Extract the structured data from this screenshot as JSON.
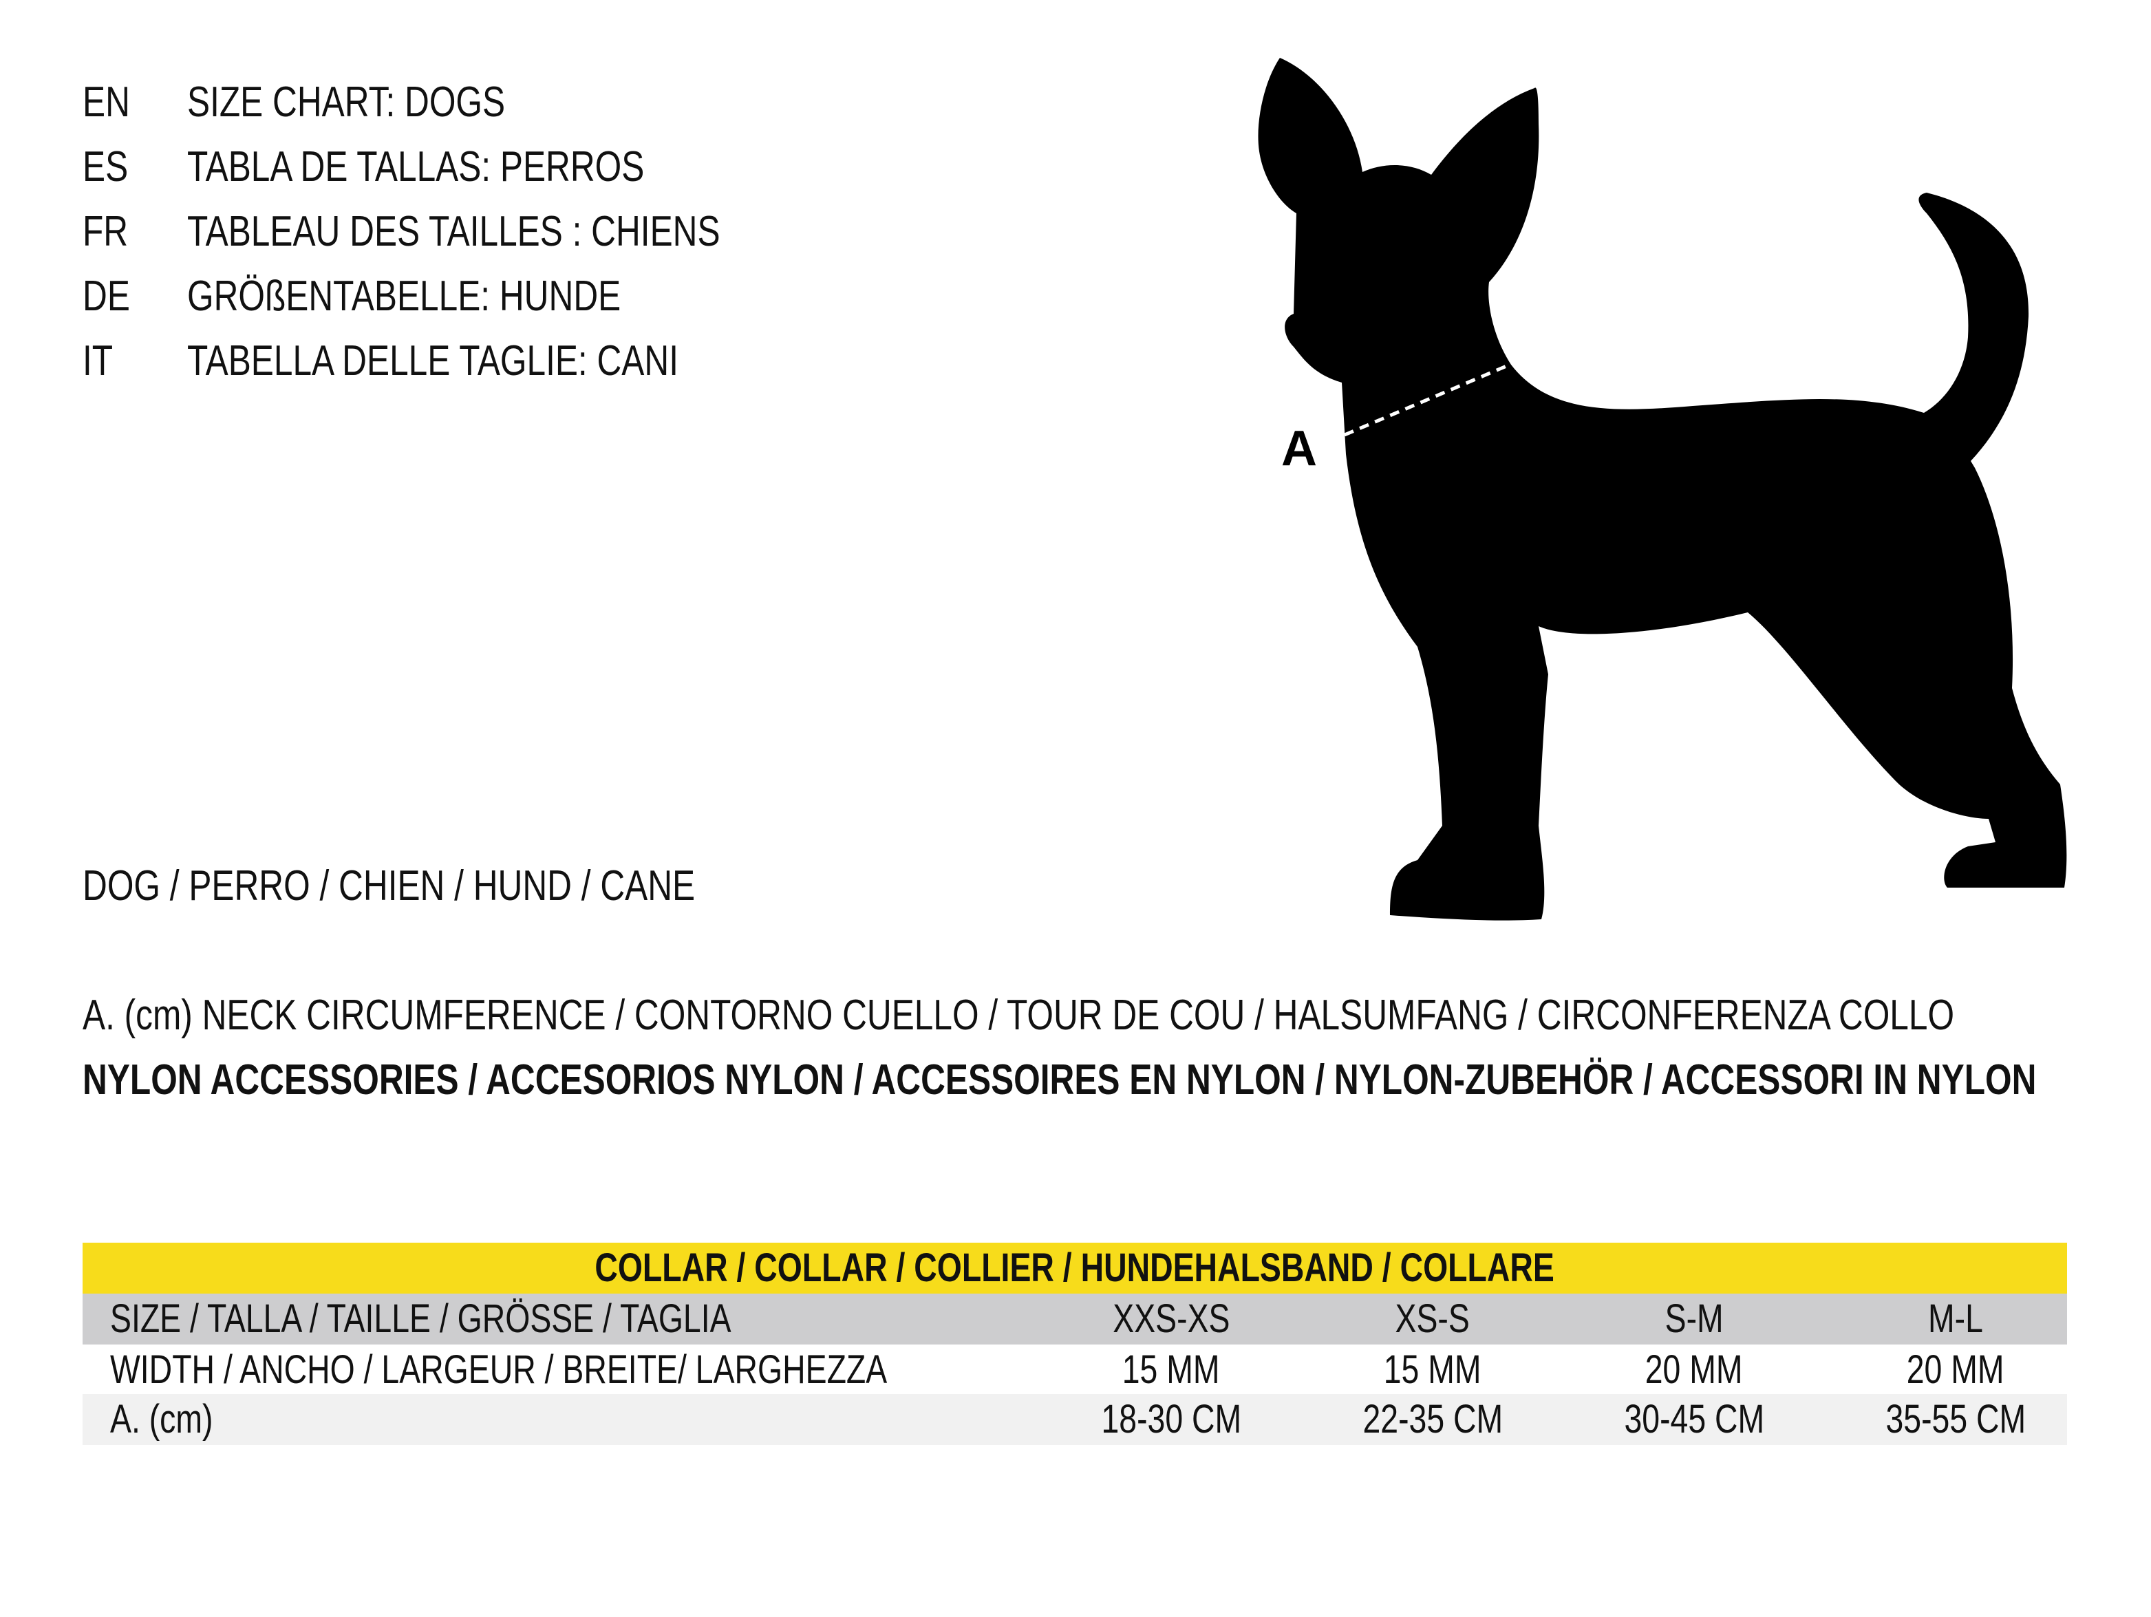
{
  "headings": [
    {
      "lang": "EN",
      "title": "SIZE CHART: DOGS"
    },
    {
      "lang": "ES",
      "title": "TABLA DE TALLAS: PERROS"
    },
    {
      "lang": "FR",
      "title": "TABLEAU DES TAILLES : CHIENS"
    },
    {
      "lang": "DE",
      "title": "GRÖßENTABELLE: HUNDE"
    },
    {
      "lang": "IT",
      "title": "TABELLA DELLE TAGLIE: CANI"
    }
  ],
  "illustration": {
    "icon": "dog-silhouette-icon",
    "measure_label": "A"
  },
  "dog_label": "DOG / PERRO / CHIEN / HUND / CANE",
  "measure_desc": "A. (cm) NECK CIRCUMFERENCE / CONTORNO CUELLO / TOUR DE COU / HALSUMFANG / CIRCONFERENZA COLLO",
  "material": "NYLON ACCESSORIES / ACCESORIOS NYLON / ACCESSOIRES EN NYLON / NYLON-ZUBEHÖR / ACCESSORI IN NYLON",
  "table": {
    "title": "COLLAR / COLLAR / COLLIER / HUNDEHALSBAND / COLLARE",
    "colors": {
      "header": "#F7DC1B",
      "size_row": "#CDCDCF",
      "alt_row": "#F1F1F1"
    },
    "rows": [
      {
        "label": "SIZE / TALLA / TAILLE / GRÖSSE / TAGLIA",
        "values": [
          "XXS-XS",
          "XS-S",
          "S-M",
          "M-L"
        ]
      },
      {
        "label": "WIDTH / ANCHO / LARGEUR / BREITE/ LARGHEZZA",
        "values": [
          "15 MM",
          "15 MM",
          "20 MM",
          "20 MM"
        ]
      },
      {
        "label": "A. (cm)",
        "values": [
          "18-30 CM",
          "22-35 CM",
          "30-45 CM",
          "35-55 CM"
        ]
      }
    ]
  }
}
